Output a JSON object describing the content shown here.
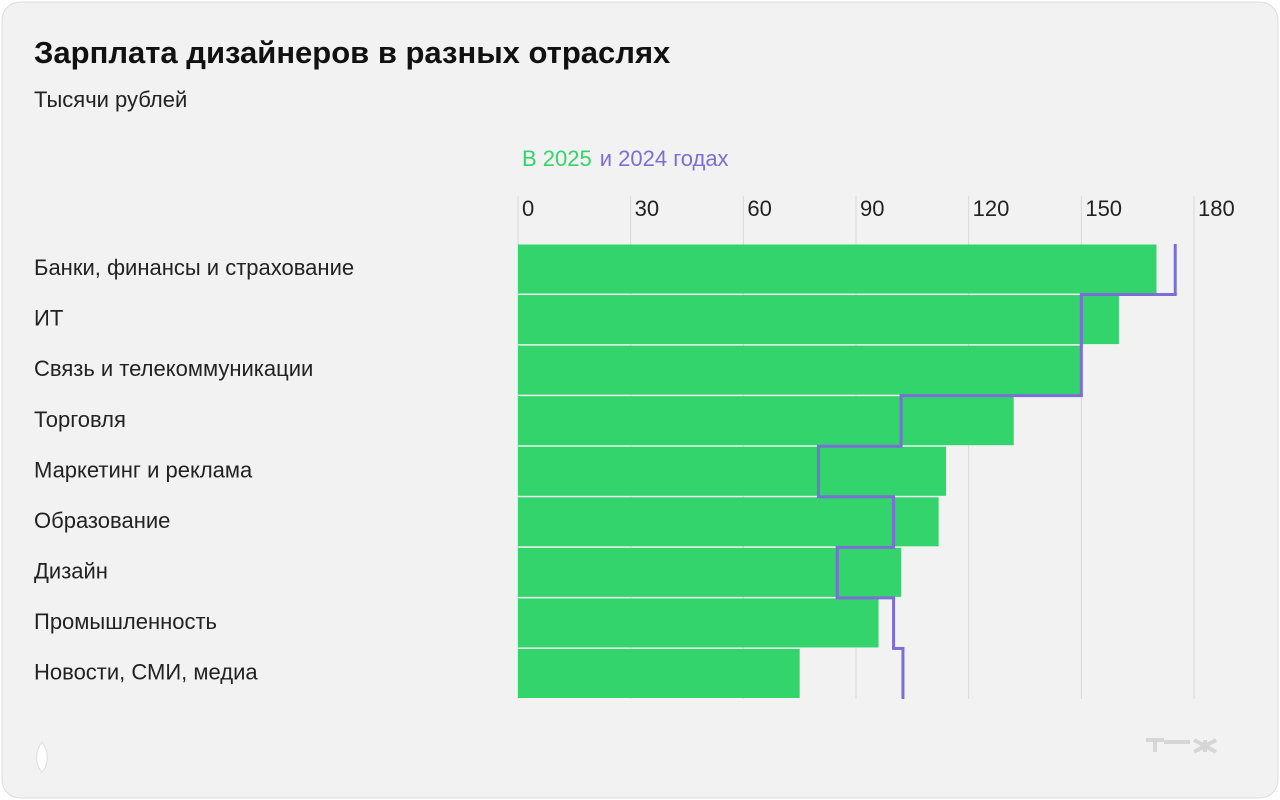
{
  "chart_data": {
    "type": "bar",
    "orientation": "horizontal",
    "title": "Зарплата дизайнеров в разных отраслях",
    "subtitle": "Тысячи рублей",
    "categories": [
      "Банки, финансы и страхование",
      "ИТ",
      "Связь и телекоммуникации",
      "Торговля",
      "Маркетинг и реклама",
      "Образование",
      "Дизайн",
      "Промышленность",
      "Новости, СМИ, медиа"
    ],
    "series": [
      {
        "name": "В 2025",
        "color": "#33d46b",
        "style": "bar",
        "values": [
          170,
          160,
          150,
          132,
          114,
          112,
          102,
          96,
          75
        ]
      },
      {
        "name": "и 2024 годах",
        "color": "#7b6fd6",
        "style": "step",
        "values": [
          175,
          150,
          150,
          102,
          80,
          100,
          85,
          100,
          102.5
        ]
      }
    ],
    "xlim": [
      0,
      180
    ],
    "xticks": [
      0,
      30,
      60,
      90,
      120,
      150,
      180
    ],
    "grid": true
  }
}
